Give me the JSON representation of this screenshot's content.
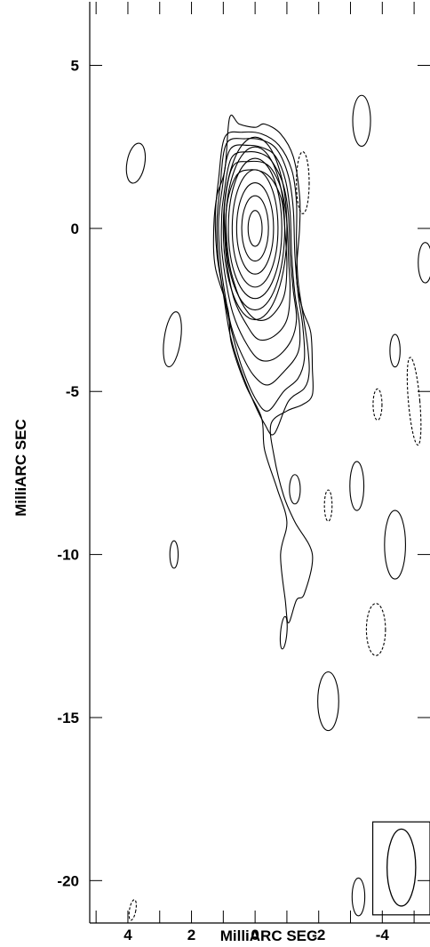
{
  "chart_data": {
    "type": "contour",
    "xlabel": "MilliARC SEC",
    "ylabel": "MilliARC SEC",
    "xlim": [
      5.2,
      -5.5
    ],
    "ylim": [
      -21.3,
      6.95
    ],
    "x_ticks": [
      4,
      2,
      0,
      -2,
      -4
    ],
    "x_tick_labels": [
      "4",
      "2",
      "0",
      "-2",
      "-4"
    ],
    "y_ticks": [
      5,
      0,
      -5,
      -10,
      -15,
      -20
    ],
    "y_tick_labels": [
      "5",
      "0",
      "-5",
      "-10",
      "-15",
      "-20"
    ],
    "minor_x_ticks": [
      5,
      3,
      1,
      -1,
      -3,
      -5
    ],
    "core_peak": [
      0,
      0
    ],
    "core_nested_contours": [
      {
        "rx": 0.22,
        "ry": 0.55
      },
      {
        "rx": 0.42,
        "ry": 1.0
      },
      {
        "rx": 0.58,
        "ry": 1.4
      },
      {
        "rx": 0.72,
        "ry": 1.8
      },
      {
        "rx": 0.84,
        "ry": 2.15
      },
      {
        "rx": 0.93,
        "ry": 2.5
      },
      {
        "rx": 1.0,
        "ry": 2.8
      }
    ],
    "jet_contours": [
      [
        [
          0.95,
          1.8
        ],
        [
          0.8,
          3.4
        ],
        [
          0.5,
          3.2
        ],
        [
          0,
          3.1
        ],
        [
          -0.3,
          3.2
        ],
        [
          -0.8,
          2.9
        ],
        [
          -1.2,
          2.2
        ],
        [
          -1.4,
          1.0
        ],
        [
          -1.4,
          0
        ],
        [
          -1.3,
          -1.5
        ],
        [
          -1.5,
          -2.5
        ],
        [
          -1.75,
          -3.2
        ],
        [
          -1.8,
          -4.3
        ],
        [
          -1.8,
          -5.1
        ],
        [
          -1.5,
          -5.4
        ],
        [
          -1.0,
          -5.6
        ],
        [
          -0.5,
          -6.0
        ],
        [
          -0.6,
          -7.0
        ],
        [
          -0.9,
          -8.2
        ],
        [
          -1.25,
          -9.0
        ],
        [
          -1.8,
          -10.0
        ],
        [
          -1.55,
          -11.2
        ],
        [
          -1.3,
          -11.4
        ],
        [
          -1.05,
          -12.1
        ],
        [
          -0.95,
          -11.4
        ],
        [
          -0.8,
          -10.0
        ],
        [
          -1.0,
          -9.0
        ],
        [
          -0.7,
          -8.0
        ],
        [
          -0.3,
          -6.8
        ],
        [
          -0.2,
          -5.8
        ],
        [
          0.3,
          -4.8
        ],
        [
          0.75,
          -3.5
        ],
        [
          0.85,
          -2.5
        ],
        [
          1.25,
          -1.2
        ],
        [
          1.3,
          0
        ],
        [
          1.2,
          1.0
        ]
      ],
      [
        [
          1.15,
          1.5
        ],
        [
          0.95,
          2.8
        ],
        [
          0.4,
          2.95
        ],
        [
          -0.2,
          2.9
        ],
        [
          -0.75,
          2.55
        ],
        [
          -1.15,
          1.8
        ],
        [
          -1.3,
          0.8
        ],
        [
          -1.3,
          -0.5
        ],
        [
          -1.35,
          -1.6
        ],
        [
          -1.5,
          -2.6
        ],
        [
          -1.65,
          -3.6
        ],
        [
          -1.7,
          -4.4
        ],
        [
          -1.55,
          -4.9
        ],
        [
          -1.05,
          -5.3
        ],
        [
          -0.6,
          -6.3
        ],
        [
          -0.3,
          -6.0
        ],
        [
          0.1,
          -5.2
        ],
        [
          0.5,
          -4.2
        ],
        [
          0.8,
          -3.2
        ],
        [
          1.0,
          -2.0
        ],
        [
          1.2,
          -0.8
        ],
        [
          1.25,
          0.4
        ]
      ],
      [
        [
          1.1,
          1.3
        ],
        [
          0.9,
          2.6
        ],
        [
          0.3,
          2.75
        ],
        [
          -0.25,
          2.7
        ],
        [
          -0.7,
          2.4
        ],
        [
          -1.05,
          1.6
        ],
        [
          -1.2,
          0.6
        ],
        [
          -1.25,
          -0.8
        ],
        [
          -1.35,
          -2.0
        ],
        [
          -1.5,
          -3.0
        ],
        [
          -1.55,
          -4.0
        ],
        [
          -1.35,
          -4.6
        ],
        [
          -0.9,
          -5.0
        ],
        [
          -0.4,
          -5.6
        ],
        [
          0.0,
          -5.2
        ],
        [
          0.4,
          -4.3
        ],
        [
          0.7,
          -3.3
        ],
        [
          0.95,
          -2.2
        ],
        [
          1.15,
          -1.0
        ],
        [
          1.2,
          0.2
        ]
      ],
      [
        [
          1.05,
          1.1
        ],
        [
          0.8,
          2.4
        ],
        [
          0.2,
          2.55
        ],
        [
          -0.3,
          2.45
        ],
        [
          -0.65,
          2.2
        ],
        [
          -0.95,
          1.5
        ],
        [
          -1.1,
          0.5
        ],
        [
          -1.15,
          -0.8
        ],
        [
          -1.25,
          -2.0
        ],
        [
          -1.4,
          -3.0
        ],
        [
          -1.35,
          -3.8
        ],
        [
          -0.9,
          -4.4
        ],
        [
          -0.4,
          -4.8
        ],
        [
          0.05,
          -4.5
        ],
        [
          0.45,
          -3.8
        ],
        [
          0.75,
          -3.0
        ],
        [
          0.95,
          -2.0
        ],
        [
          1.1,
          -0.9
        ],
        [
          1.15,
          0.2
        ]
      ],
      [
        [
          1.0,
          0.9
        ],
        [
          0.75,
          2.15
        ],
        [
          0.2,
          2.35
        ],
        [
          -0.3,
          2.25
        ],
        [
          -0.6,
          1.95
        ],
        [
          -0.9,
          1.3
        ],
        [
          -1.05,
          0.4
        ],
        [
          -1.1,
          -0.8
        ],
        [
          -1.2,
          -1.9
        ],
        [
          -1.3,
          -2.8
        ],
        [
          -1.1,
          -3.5
        ],
        [
          -0.6,
          -4.0
        ],
        [
          -0.1,
          -4.0
        ],
        [
          0.35,
          -3.4
        ],
        [
          0.7,
          -2.6
        ],
        [
          0.9,
          -1.7
        ],
        [
          1.05,
          -0.6
        ],
        [
          1.05,
          0.3
        ]
      ],
      [
        [
          0.95,
          0.8
        ],
        [
          0.7,
          1.9
        ],
        [
          0.2,
          2.05
        ],
        [
          -0.3,
          2.0
        ],
        [
          -0.6,
          1.7
        ],
        [
          -0.85,
          1.1
        ],
        [
          -1.0,
          0.2
        ],
        [
          -1.05,
          -0.9
        ],
        [
          -1.1,
          -1.9
        ],
        [
          -1.0,
          -2.8
        ],
        [
          -0.6,
          -3.3
        ],
        [
          -0.1,
          -3.4
        ],
        [
          0.3,
          -2.9
        ],
        [
          0.65,
          -2.2
        ],
        [
          0.85,
          -1.3
        ],
        [
          0.95,
          -0.3
        ]
      ],
      [
        [
          0.9,
          0.6
        ],
        [
          0.6,
          1.6
        ],
        [
          0.15,
          1.8
        ],
        [
          -0.3,
          1.7
        ],
        [
          -0.6,
          1.4
        ],
        [
          -0.85,
          0.8
        ],
        [
          -0.95,
          -0.2
        ],
        [
          -1.0,
          -1.2
        ],
        [
          -0.9,
          -2.1
        ],
        [
          -0.5,
          -2.7
        ],
        [
          -0.05,
          -2.8
        ],
        [
          0.35,
          -2.4
        ],
        [
          0.65,
          -1.7
        ],
        [
          0.85,
          -0.8
        ]
      ]
    ],
    "island_contours": [
      {
        "x": 3.75,
        "y": 2.0,
        "rx": 0.28,
        "ry": 0.62,
        "tilt": 10,
        "style": "solid"
      },
      {
        "x": -3.35,
        "y": 3.3,
        "rx": 0.28,
        "ry": 0.78,
        "tilt": 0,
        "style": "solid"
      },
      {
        "x": -1.5,
        "y": 1.4,
        "rx": 0.2,
        "ry": 0.95,
        "tilt": 0,
        "style": "dashed"
      },
      {
        "x": -5.35,
        "y": -1.05,
        "rx": 0.22,
        "ry": 0.62,
        "tilt": 0,
        "style": "solid"
      },
      {
        "x": 2.6,
        "y": -3.4,
        "rx": 0.26,
        "ry": 0.85,
        "tilt": 8,
        "style": "solid"
      },
      {
        "x": -4.4,
        "y": -3.75,
        "rx": 0.16,
        "ry": 0.5,
        "tilt": 0,
        "style": "solid"
      },
      {
        "x": -3.85,
        "y": -5.4,
        "rx": 0.14,
        "ry": 0.48,
        "tilt": 0,
        "style": "dashed"
      },
      {
        "x": -5.0,
        "y": -5.3,
        "rx": 0.18,
        "ry": 1.35,
        "tilt": -5,
        "style": "dashed"
      },
      {
        "x": -1.25,
        "y": -8.0,
        "rx": 0.17,
        "ry": 0.45,
        "tilt": 0,
        "style": "solid"
      },
      {
        "x": -2.3,
        "y": -8.5,
        "rx": 0.12,
        "ry": 0.48,
        "tilt": 0,
        "style": "dashed"
      },
      {
        "x": -3.2,
        "y": -7.9,
        "rx": 0.22,
        "ry": 0.75,
        "tilt": 0,
        "style": "solid"
      },
      {
        "x": -4.4,
        "y": -9.7,
        "rx": 0.33,
        "ry": 1.05,
        "tilt": 0,
        "style": "solid"
      },
      {
        "x": 2.55,
        "y": -10.0,
        "rx": 0.13,
        "ry": 0.42,
        "tilt": 0,
        "style": "solid"
      },
      {
        "x": -3.8,
        "y": -12.3,
        "rx": 0.3,
        "ry": 0.8,
        "tilt": 0,
        "style": "dashed"
      },
      {
        "x": -0.9,
        "y": -12.4,
        "rx": 0.1,
        "ry": 0.5,
        "tilt": 5,
        "style": "solid"
      },
      {
        "x": -2.3,
        "y": -14.5,
        "rx": 0.33,
        "ry": 0.9,
        "tilt": 0,
        "style": "solid"
      },
      {
        "x": -3.25,
        "y": -20.5,
        "rx": 0.2,
        "ry": 0.58,
        "tilt": 0,
        "style": "solid"
      },
      {
        "x": 3.85,
        "y": -20.9,
        "rx": 0.1,
        "ry": 0.32,
        "tilt": 10,
        "style": "dashed"
      }
    ],
    "beam": {
      "box_x": [
        -3.7,
        -5.5
      ],
      "box_y": [
        -18.2,
        -21.05
      ],
      "center": [
        -4.6,
        -19.6
      ],
      "rx": 0.45,
      "ry": 1.18
    }
  }
}
